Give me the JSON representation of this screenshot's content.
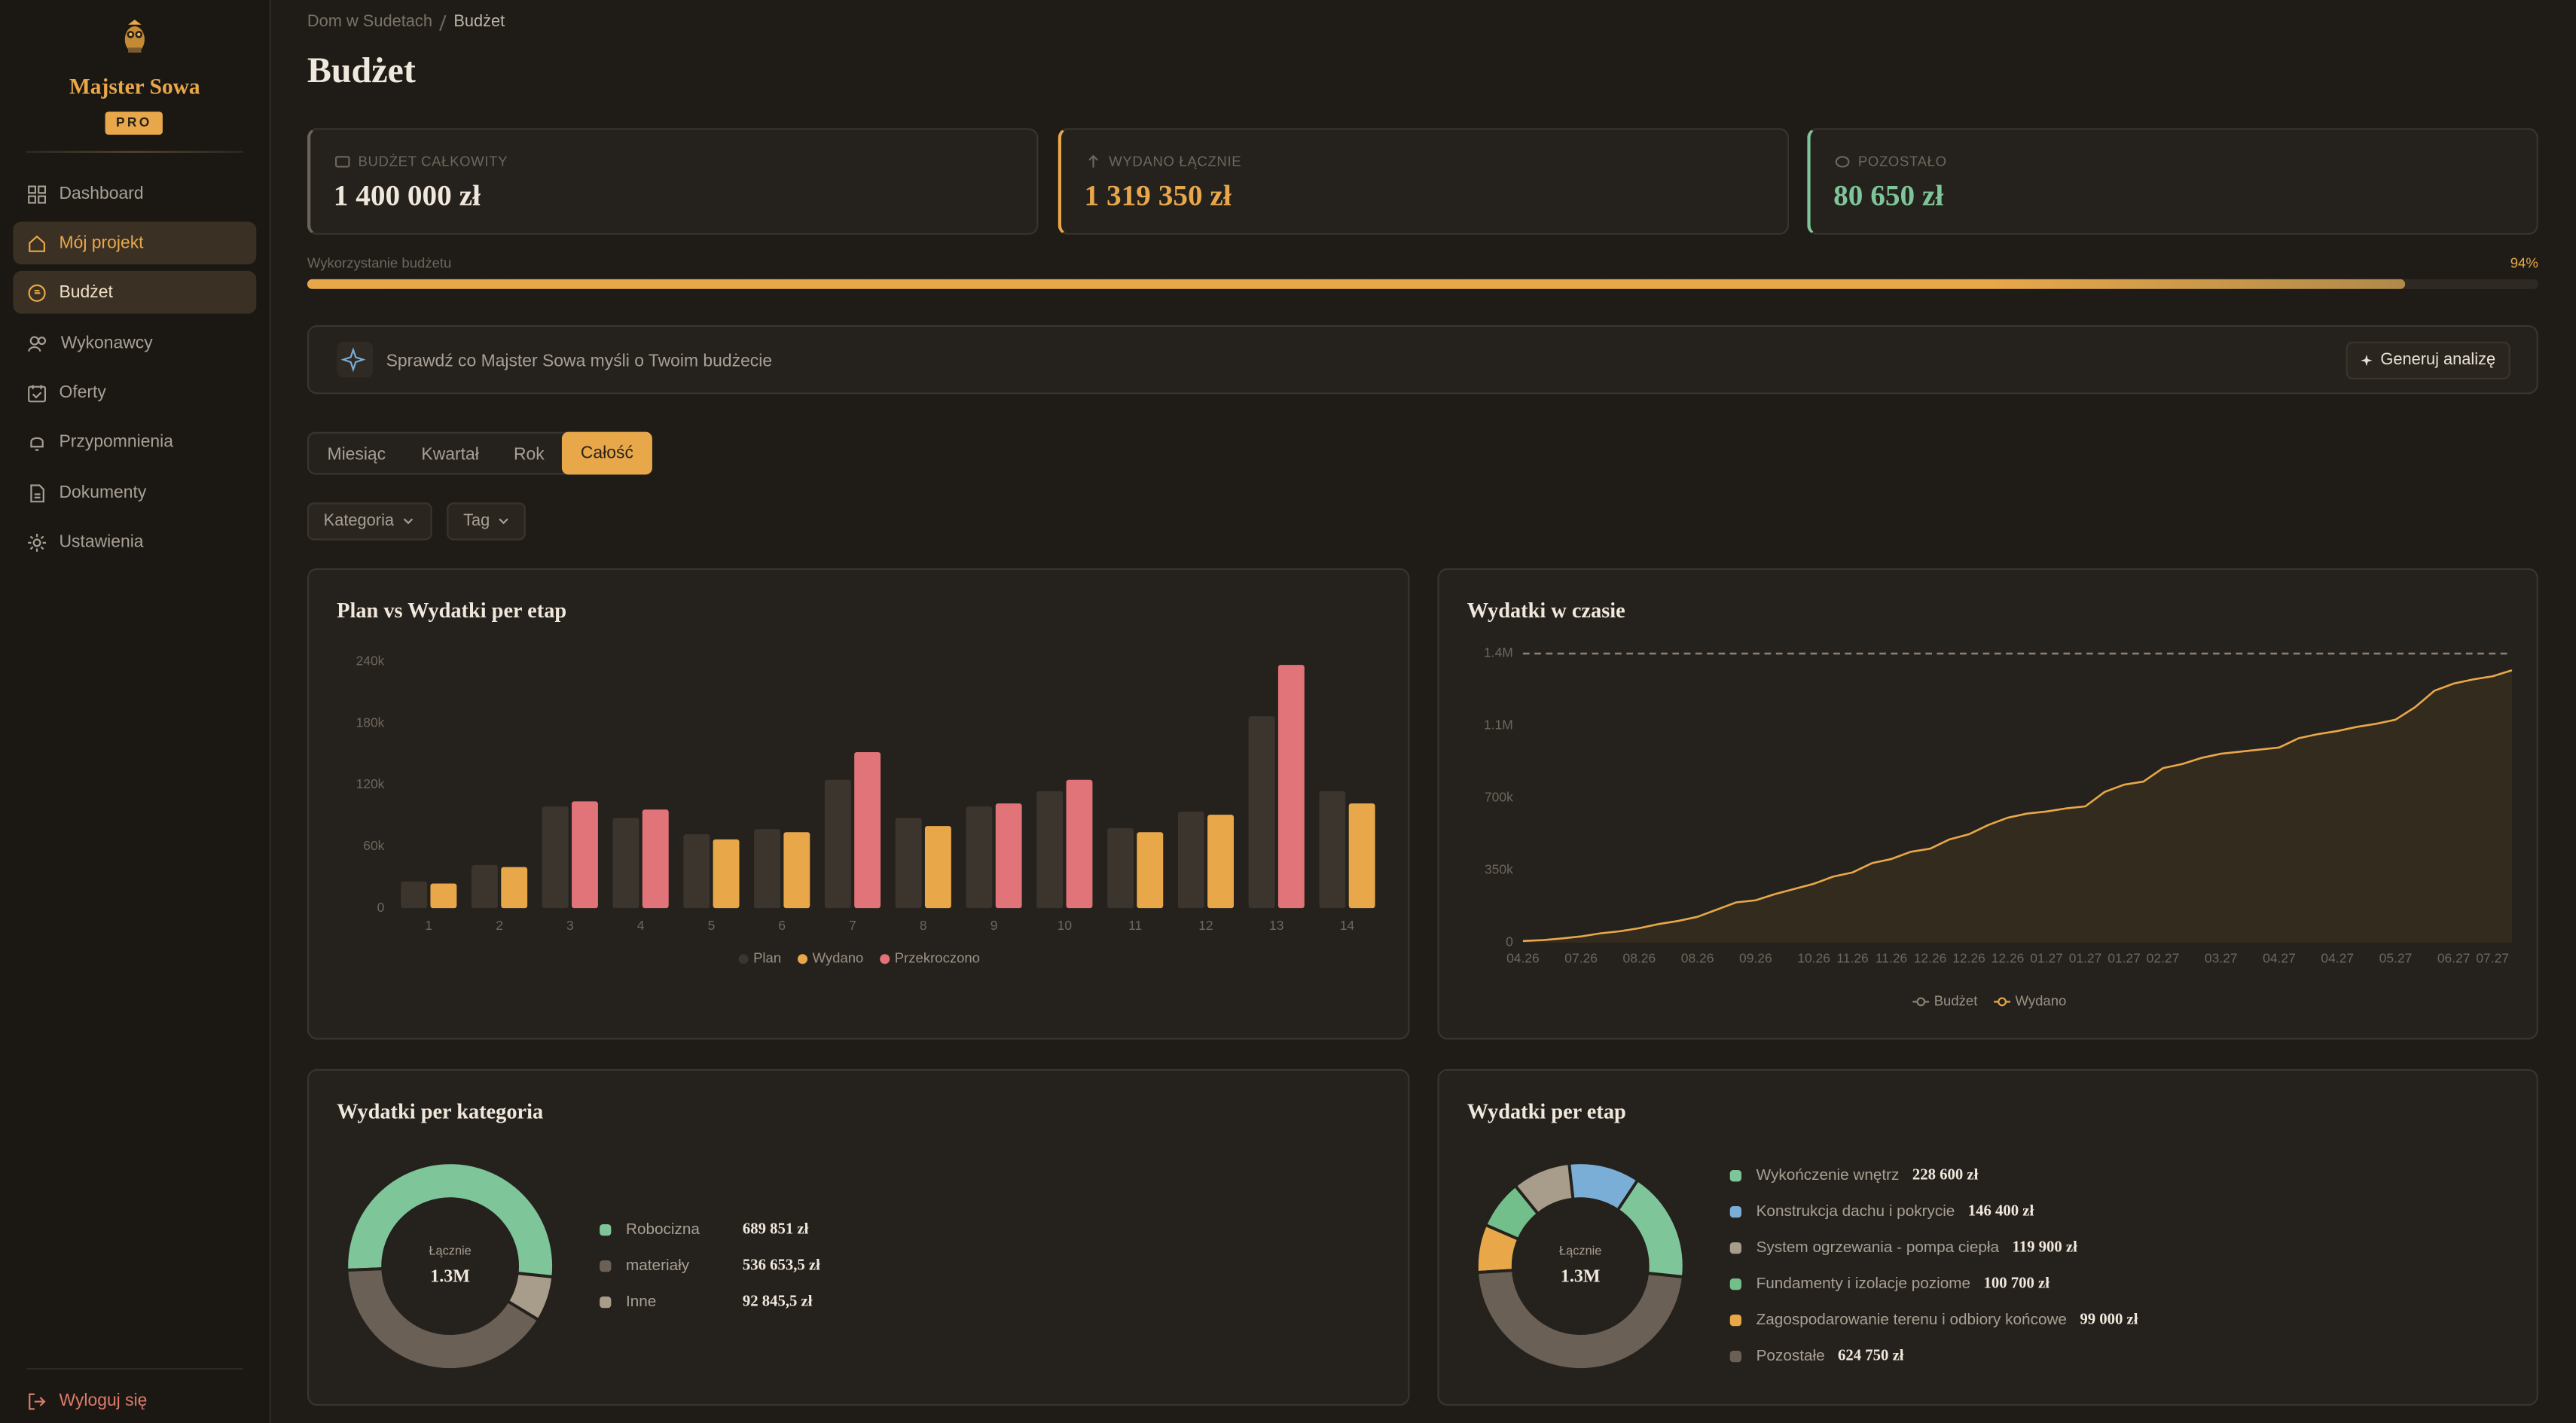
{
  "sidebar": {
    "brand": "Majster Sowa",
    "badge": "PRO",
    "nav": [
      "Dashboard",
      "Mój projekt",
      "Budżet",
      "Wykonawcy",
      "Oferty",
      "Przypomnienia",
      "Dokumenty",
      "Ustawienia"
    ],
    "nav_active": [
      1,
      2
    ],
    "logout": "Wyloguj się"
  },
  "header": {
    "breadcrumb": [
      "Dom w Sudetach",
      "Budżet"
    ],
    "title": "Budżet"
  },
  "stats": [
    {
      "label": "BUDŻET CAŁKOWITY",
      "value": "1 400 000 zł"
    },
    {
      "label": "WYDANO ŁĄCZNIE",
      "value": "1 319 350 zł"
    },
    {
      "label": "POZOSTAŁO",
      "value": "80 650 zł"
    }
  ],
  "progress": {
    "label": "Wykorzystanie budżetu",
    "value": 94,
    "value_label": "94%"
  },
  "insight": {
    "text": "Sprawdź co Majster Sowa myśli o Twoim budżecie",
    "button": "Generuj analizę"
  },
  "tabs": {
    "items": [
      "Miesiąc",
      "Kwartał",
      "Rok",
      "Całość"
    ],
    "active": 3
  },
  "filters": [
    "Kategoria",
    "Tag"
  ],
  "chart_data": [
    {
      "type": "bar",
      "title": "Plan vs Wydatki per etap",
      "categories": [
        "1",
        "2",
        "3",
        "4",
        "5",
        "6",
        "7",
        "8",
        "9",
        "10",
        "11",
        "12",
        "13",
        "14"
      ],
      "series": [
        {
          "name": "Plan",
          "color": "#3b352e",
          "values": [
            26000,
            42000,
            99000,
            88000,
            72000,
            77000,
            125000,
            88000,
            99000,
            114000,
            78000,
            94000,
            187000,
            114000
          ]
        },
        {
          "name": "Wydano",
          "color": "#e8a84a",
          "values": [
            24000,
            40000,
            null,
            null,
            67000,
            74000,
            null,
            80000,
            null,
            null,
            74000,
            91000,
            null,
            102000
          ]
        },
        {
          "name": "Przekroczono",
          "color": "#e07478",
          "values": [
            null,
            null,
            104000,
            96000,
            null,
            null,
            152000,
            null,
            102000,
            125000,
            null,
            null,
            237000,
            null
          ]
        }
      ],
      "ylim": [
        0,
        240000
      ],
      "yticks": [
        0,
        {
          "value": 60000,
          "label": "60k"
        },
        {
          "value": 120000,
          "label": "120k"
        },
        {
          "value": 180000,
          "label": "180k"
        },
        {
          "value": 240000,
          "label": "240k"
        }
      ],
      "grid": false
    },
    {
      "type": "line",
      "title": "Wydatki w czasie",
      "categories": [
        "04.26",
        null,
        null,
        "07.26",
        null,
        null,
        "08.26",
        null,
        null,
        "08.26",
        null,
        null,
        "09.26",
        null,
        null,
        "10.26",
        null,
        "11.26",
        null,
        "11.26",
        null,
        "12.26",
        null,
        "12.26",
        null,
        "12.26",
        null,
        "01.27",
        null,
        "01.27",
        null,
        "01.27",
        null,
        "02.27",
        null,
        null,
        "03.27",
        null,
        null,
        "04.27",
        null,
        null,
        "04.27",
        null,
        null,
        "05.27",
        null,
        null,
        "06.27",
        null,
        "07.27",
        null
      ],
      "series": [
        {
          "name": "Budżet",
          "color": "#8a8072",
          "dashed": true,
          "values": [
            1400000,
            1400000,
            1400000,
            1400000,
            1400000,
            1400000,
            1400000,
            1400000,
            1400000,
            1400000,
            1400000,
            1400000,
            1400000,
            1400000,
            1400000,
            1400000,
            1400000,
            1400000,
            1400000,
            1400000,
            1400000,
            1400000,
            1400000,
            1400000,
            1400000,
            1400000,
            1400000,
            1400000,
            1400000,
            1400000,
            1400000,
            1400000,
            1400000,
            1400000,
            1400000,
            1400000,
            1400000,
            1400000,
            1400000,
            1400000,
            1400000,
            1400000,
            1400000,
            1400000,
            1400000,
            1400000,
            1400000,
            1400000,
            1400000,
            1400000,
            1400000,
            1400000
          ]
        },
        {
          "name": "Wydano",
          "color": "#e8a84a",
          "area": true,
          "values": [
            8000,
            12000,
            20000,
            30000,
            45000,
            55000,
            70000,
            90000,
            105000,
            125000,
            160000,
            195000,
            205000,
            235000,
            260000,
            285000,
            320000,
            340000,
            385000,
            405000,
            440000,
            455000,
            500000,
            525000,
            570000,
            605000,
            625000,
            635000,
            650000,
            660000,
            730000,
            765000,
            780000,
            845000,
            865000,
            895000,
            915000,
            925000,
            935000,
            945000,
            990000,
            1010000,
            1025000,
            1045000,
            1060000,
            1080000,
            1140000,
            1220000,
            1255000,
            1275000,
            1290000,
            1319350
          ]
        }
      ],
      "ylim": [
        0,
        1400000
      ],
      "yticks": [
        0,
        {
          "value": 350000,
          "label": "350k"
        },
        {
          "value": 700000,
          "label": "700k"
        },
        {
          "value": 1050000,
          "label": "1.1M"
        },
        {
          "value": 1400000,
          "label": "1.4M"
        }
      ],
      "grid": false
    },
    {
      "type": "pie",
      "title": "Wydatki per kategoria",
      "center_label": "Łącznie",
      "center_text": "1.3M",
      "categories": [
        "Robocizna",
        "materiały",
        "Inne"
      ],
      "values": [
        689851,
        536653.5,
        92845.5
      ],
      "value_labels": [
        "689 851 zł",
        "536 653,5 zł",
        "92 845,5 zł"
      ],
      "colors": [
        "#7fc59a",
        "#6b6055",
        "#a89c8a"
      ]
    },
    {
      "type": "pie",
      "title": "Wydatki per etap",
      "center_label": "Łącznie",
      "center_text": "1.3M",
      "categories": [
        "Wykończenie wnętrz",
        "Konstrukcja dachu i pokrycie",
        "System ogrzewania - pompa ciepła",
        "Fundamenty i izolacje poziome",
        "Zagospodarowanie terenu i odbiory końcowe",
        "Pozostałe"
      ],
      "values": [
        228600,
        146400,
        119900,
        100700,
        99000,
        624750
      ],
      "value_labels": [
        "228 600 zł",
        "146 400 zł",
        "119 900 zł",
        "100 700 zł",
        "99 000 zł",
        "624 750 zł"
      ],
      "colors": [
        "#7fc59a",
        "#7aaed6",
        "#a89c8a",
        "#72bf8b",
        "#e8a84a",
        "#6b6055"
      ]
    }
  ]
}
